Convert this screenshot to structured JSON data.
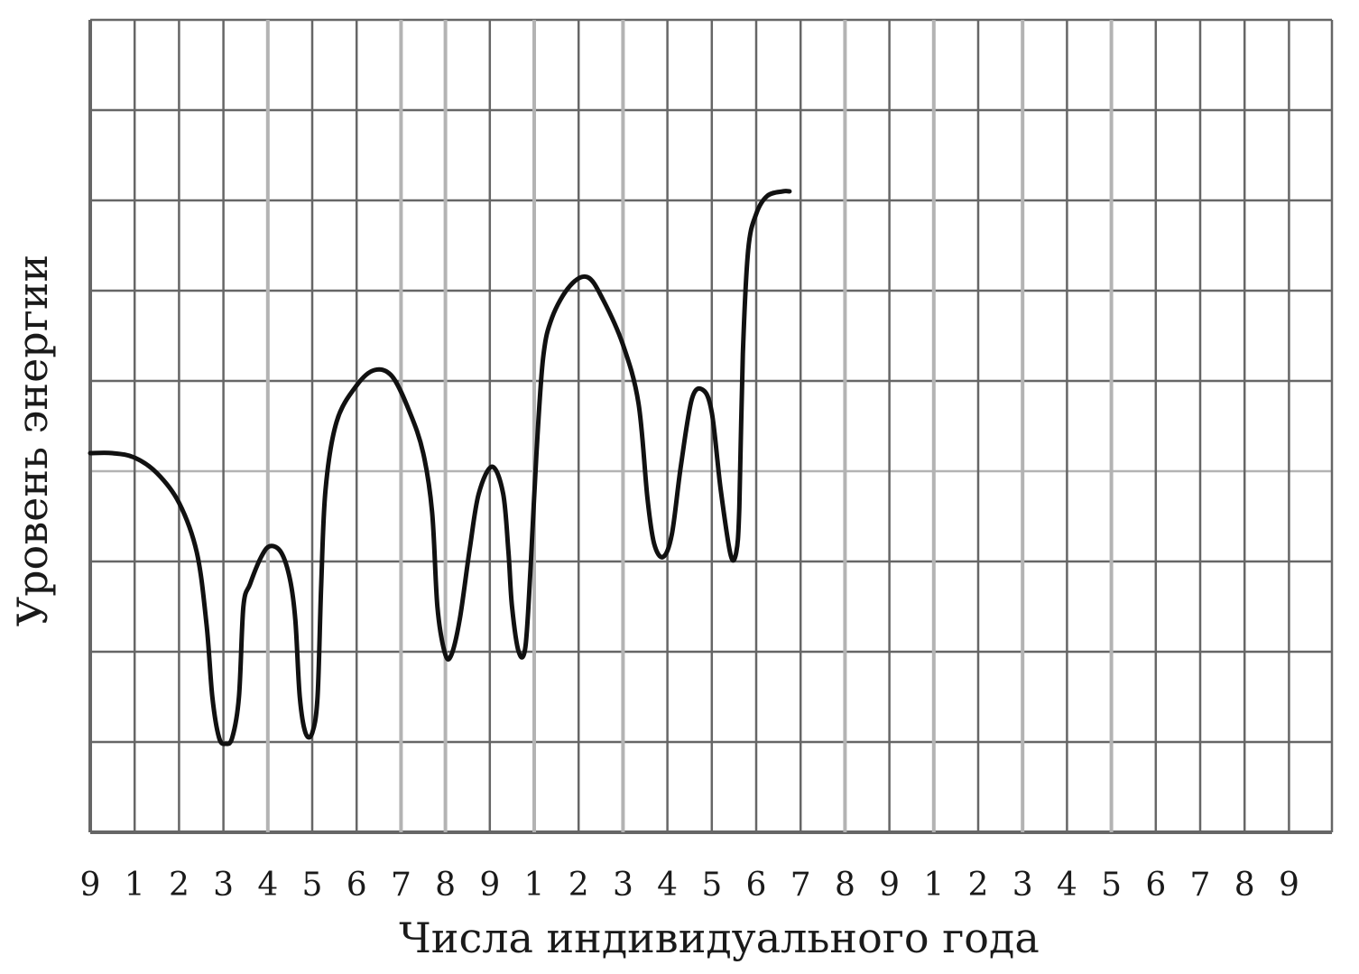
{
  "chart_data": {
    "type": "line",
    "title": "",
    "xlabel": "Числа индивидуального года",
    "ylabel": "Уровень энергии",
    "x_tick_labels": [
      "9",
      "1",
      "2",
      "3",
      "4",
      "5",
      "6",
      "7",
      "8",
      "9",
      "1",
      "2",
      "3",
      "4",
      "5",
      "6",
      "7",
      "8",
      "9",
      "1",
      "2",
      "3",
      "4",
      "5",
      "6",
      "7",
      "8",
      "9"
    ],
    "highlighted_ticks": [
      4,
      7,
      8,
      10,
      12,
      17,
      19,
      21,
      23
    ],
    "ylim": [
      0,
      9
    ],
    "grid": true,
    "grid_color": "#666666",
    "highlight_grid_color": "#b3b3b3",
    "line_color": "#111111",
    "series": [
      {
        "values": [
          [
            0.0,
            4.2
          ],
          [
            0.5,
            4.2
          ],
          [
            1.0,
            4.15
          ],
          [
            1.5,
            3.98
          ],
          [
            2.0,
            3.65
          ],
          [
            2.4,
            3.1
          ],
          [
            2.62,
            2.3
          ],
          [
            2.75,
            1.5
          ],
          [
            2.9,
            1.05
          ],
          [
            3.05,
            0.98
          ],
          [
            3.2,
            1.05
          ],
          [
            3.35,
            1.5
          ],
          [
            3.45,
            2.5
          ],
          [
            3.6,
            2.75
          ],
          [
            3.85,
            3.05
          ],
          [
            4.05,
            3.17
          ],
          [
            4.3,
            3.1
          ],
          [
            4.5,
            2.8
          ],
          [
            4.62,
            2.35
          ],
          [
            4.72,
            1.5
          ],
          [
            4.85,
            1.1
          ],
          [
            5.0,
            1.1
          ],
          [
            5.12,
            1.5
          ],
          [
            5.2,
            2.7
          ],
          [
            5.3,
            3.8
          ],
          [
            5.55,
            4.55
          ],
          [
            6.0,
            4.95
          ],
          [
            6.4,
            5.12
          ],
          [
            6.8,
            5.05
          ],
          [
            7.2,
            4.65
          ],
          [
            7.5,
            4.2
          ],
          [
            7.7,
            3.55
          ],
          [
            7.82,
            2.5
          ],
          [
            7.98,
            2.0
          ],
          [
            8.12,
            1.95
          ],
          [
            8.32,
            2.35
          ],
          [
            8.55,
            3.15
          ],
          [
            8.75,
            3.75
          ],
          [
            9.05,
            4.05
          ],
          [
            9.3,
            3.75
          ],
          [
            9.42,
            3.1
          ],
          [
            9.5,
            2.5
          ],
          [
            9.65,
            2.0
          ],
          [
            9.8,
            2.05
          ],
          [
            9.92,
            2.95
          ],
          [
            10.05,
            4.2
          ],
          [
            10.2,
            5.25
          ],
          [
            10.4,
            5.7
          ],
          [
            10.8,
            6.05
          ],
          [
            11.2,
            6.15
          ],
          [
            11.55,
            5.9
          ],
          [
            12.0,
            5.4
          ],
          [
            12.35,
            4.75
          ],
          [
            12.55,
            3.7
          ],
          [
            12.7,
            3.2
          ],
          [
            12.9,
            3.05
          ],
          [
            13.1,
            3.3
          ],
          [
            13.3,
            4.05
          ],
          [
            13.55,
            4.8
          ],
          [
            13.8,
            4.9
          ],
          [
            14.0,
            4.65
          ],
          [
            14.2,
            3.8
          ],
          [
            14.42,
            3.08
          ],
          [
            14.55,
            3.1
          ],
          [
            14.62,
            3.6
          ],
          [
            14.7,
            5.3
          ],
          [
            14.82,
            6.45
          ],
          [
            15.0,
            6.85
          ],
          [
            15.25,
            7.05
          ],
          [
            15.6,
            7.1
          ],
          [
            15.75,
            7.1
          ]
        ]
      }
    ]
  }
}
